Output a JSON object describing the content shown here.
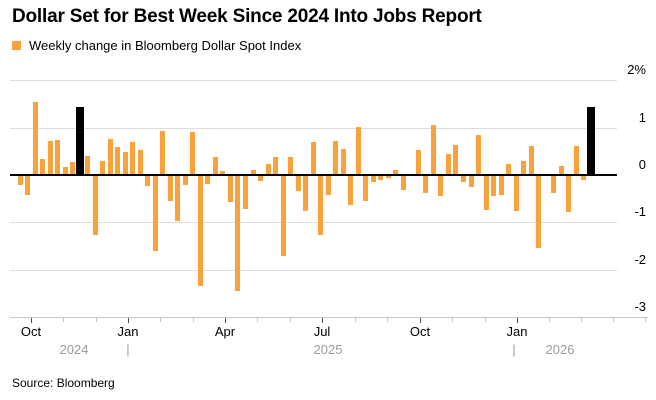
{
  "title": "Dollar Set for Best Week Since 2024 Into Jobs Report",
  "legend": {
    "label": "Weekly change in Bloomberg Dollar Spot Index",
    "swatch_color": "#f9a13a"
  },
  "source": "Source: Bloomberg",
  "colors": {
    "bar": "#f9a13a",
    "highlight_bar": "#000000",
    "gridline": "#dcdcdc",
    "zero_line": "#000000",
    "year_label": "#9b9b9b"
  },
  "chart_data": {
    "type": "bar",
    "title": "Dollar Set for Best Week Since 2024 Into Jobs Report",
    "series_name": "Weekly change in Bloomberg Dollar Spot Index",
    "unit": "%",
    "ylim": [
      -3,
      2
    ],
    "grid": true,
    "x_description": "Weekly bars from late Sep 2024 to early Mar 2026",
    "values": [
      -0.22,
      -0.42,
      1.55,
      0.34,
      0.71,
      0.75,
      0.16,
      0.28,
      1.44,
      0.41,
      -1.26,
      0.3,
      0.77,
      0.6,
      0.49,
      0.69,
      0.52,
      -0.24,
      -1.61,
      0.94,
      -0.55,
      -0.98,
      -0.21,
      0.9,
      -2.35,
      -0.2,
      0.38,
      0.08,
      -0.58,
      -2.45,
      -0.71,
      0.1,
      -0.13,
      0.23,
      0.39,
      -1.71,
      0.37,
      -0.34,
      -0.77,
      0.69,
      -1.26,
      -0.42,
      0.72,
      0.55,
      -0.64,
      1.02,
      -0.54,
      -0.15,
      -0.1,
      -0.07,
      0.11,
      -0.32,
      0.02,
      0.53,
      -0.38,
      1.05,
      -0.45,
      0.45,
      0.64,
      -0.15,
      -0.26,
      0.85,
      -0.73,
      -0.45,
      -0.43,
      0.24,
      -0.76,
      0.3,
      0.61,
      -1.54,
      0.0,
      -0.39,
      0.2,
      -0.79,
      0.61,
      -0.11,
      1.43
    ],
    "highlight_indices": [
      8,
      76
    ],
    "y_axis": {
      "ticks": [
        {
          "label": "2%",
          "value": 2
        },
        {
          "label": "1",
          "value": 1
        },
        {
          "label": "0",
          "value": 0
        },
        {
          "label": "-1",
          "value": -1
        },
        {
          "label": "-2",
          "value": -2
        },
        {
          "label": "-3",
          "value": -3
        }
      ]
    },
    "x_axis": {
      "months": [
        {
          "label": "Oct"
        },
        {
          "label": "Jan"
        },
        {
          "label": "Apr"
        },
        {
          "label": "Jul"
        },
        {
          "label": "Oct"
        },
        {
          "label": "Jan"
        }
      ],
      "years": [
        {
          "label": "2024"
        },
        {
          "label": "|"
        },
        {
          "label": "2025"
        },
        {
          "label": "|"
        },
        {
          "label": "2026"
        }
      ]
    }
  }
}
